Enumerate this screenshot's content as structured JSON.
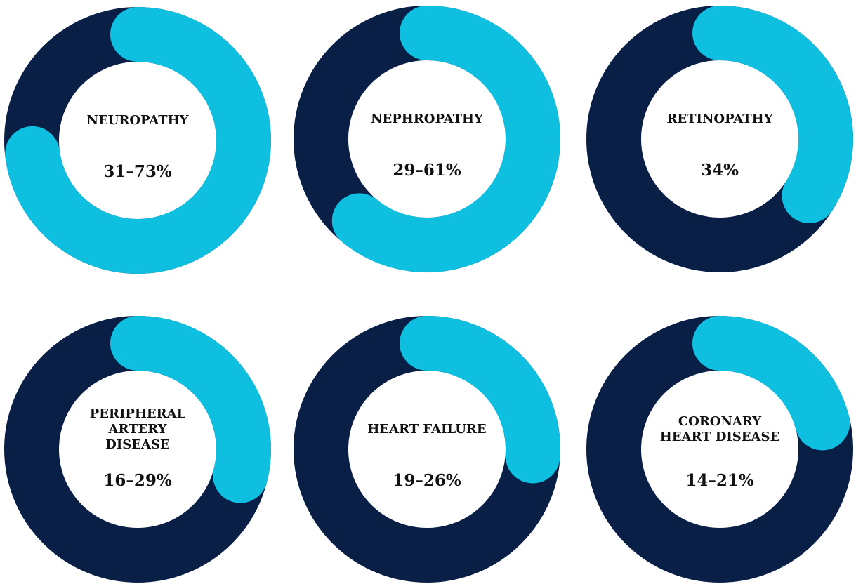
{
  "chart_data": [
    {
      "type": "donut",
      "title": [
        "NEUROPATHY"
      ],
      "values": [
        73
      ],
      "value_labels": [
        "31–73%"
      ],
      "color": "#0fbfe0",
      "track_color": "#0a1f45"
    },
    {
      "type": "donut",
      "title": [
        "NEPHROPATHY"
      ],
      "values": [
        61
      ],
      "value_labels": [
        "29–61%"
      ],
      "color": "#0fbfe0",
      "track_color": "#0a1f45"
    },
    {
      "type": "donut",
      "title": [
        "RETINOPATHY"
      ],
      "values": [
        34
      ],
      "value_labels": [
        "34%"
      ],
      "color": "#0fbfe0",
      "track_color": "#0a1f45"
    },
    {
      "type": "donut",
      "title": [
        "PERIPHERAL",
        "ARTERY",
        "DISEASE"
      ],
      "values": [
        29
      ],
      "value_labels": [
        "16–29%"
      ],
      "color": "#0fbfe0",
      "track_color": "#0a1f45"
    },
    {
      "type": "donut",
      "title": [
        "HEART FAILURE"
      ],
      "values": [
        26
      ],
      "value_labels": [
        "19–26%"
      ],
      "color": "#0fbfe0",
      "track_color": "#0a1f45"
    },
    {
      "type": "donut",
      "title": [
        "CORONARY",
        "HEART DISEASE"
      ],
      "values": [
        21
      ],
      "value_labels": [
        "14–21%"
      ],
      "color": "#0fbfe0",
      "track_color": "#0a1f45"
    }
  ]
}
